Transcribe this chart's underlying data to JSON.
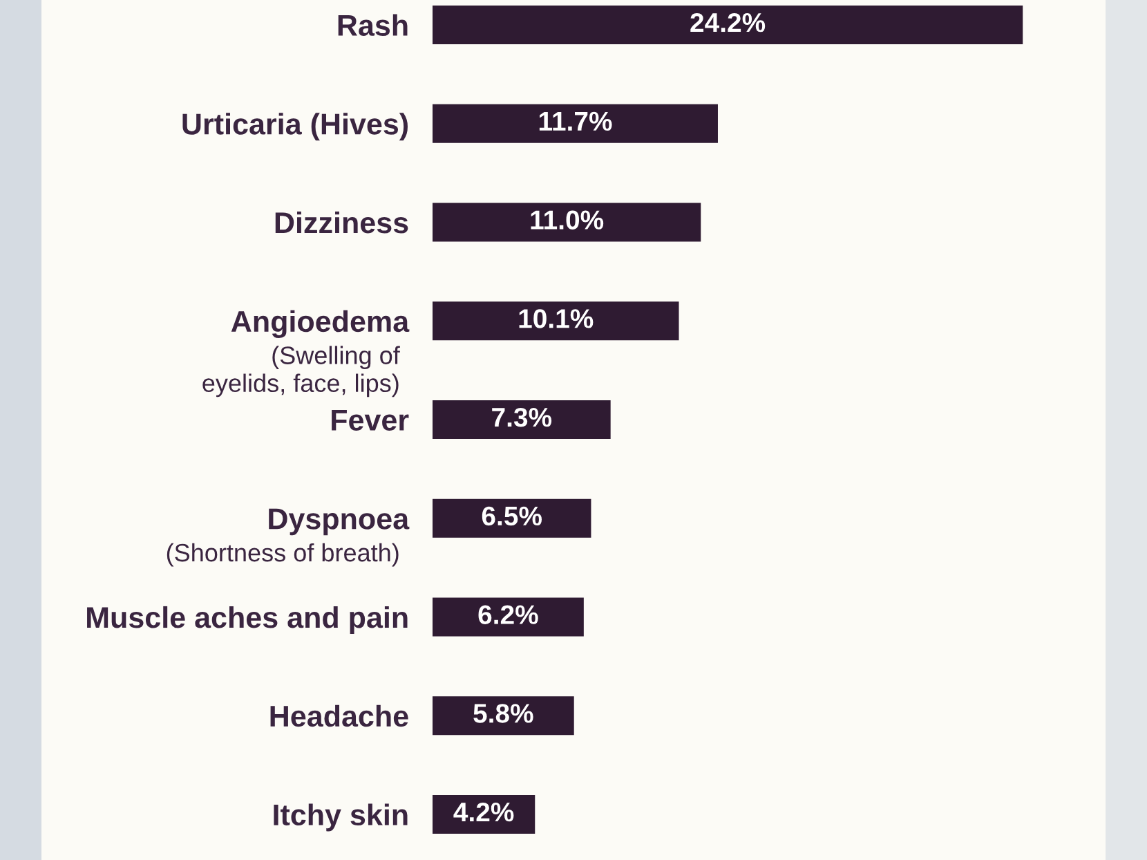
{
  "chart_data": {
    "type": "bar",
    "orientation": "horizontal",
    "categories": [
      "Rash",
      "Urticaria (Hives)",
      "Dizziness",
      "Angioedema\n(Swelling of\neyelids, face, lips)",
      "Fever",
      "Dyspnoea\n(Shortness of breath)",
      "Muscle aches and pain",
      "Headache",
      "Itchy skin"
    ],
    "values": [
      24.2,
      11.7,
      11.0,
      10.1,
      7.3,
      6.5,
      6.2,
      5.8,
      4.2
    ],
    "value_labels": [
      "24.2%",
      "11.7%",
      "11.0%",
      "10.1%",
      "7.3%",
      "6.5%",
      "6.2%",
      "5.8%",
      "4.2%"
    ],
    "color": "#2f1b32"
  }
}
